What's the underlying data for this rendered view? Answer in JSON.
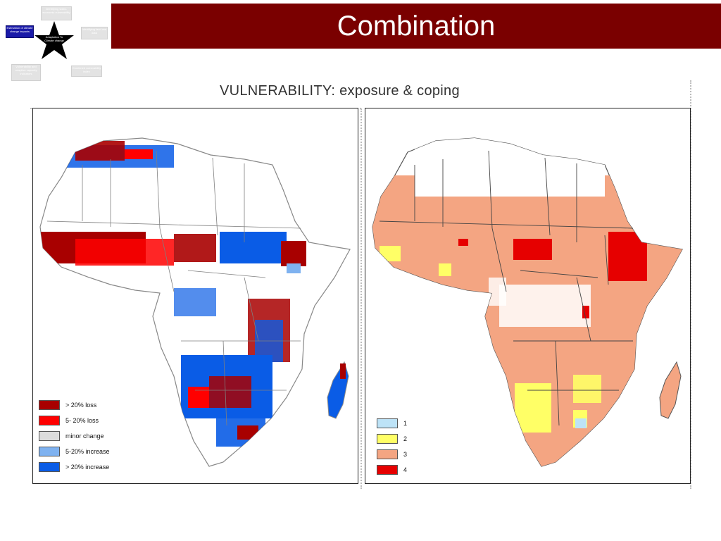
{
  "slide": {
    "title": "Combination"
  },
  "diagram": {
    "center_label": "Adaptation To Climate change",
    "boxes": [
      {
        "label": "Estimation of climate change impacts",
        "active": true
      },
      {
        "label": "Identifying socio-economic vulnerability",
        "active": false
      },
      {
        "label": "Identifying land use data",
        "active": false
      },
      {
        "label": "Vulnerability and adaptive capacity indicators",
        "active": false
      },
      {
        "label": "Combined vulnerability index",
        "active": false
      }
    ]
  },
  "figure": {
    "title": "VULNERABILITY: exposure & coping",
    "left_legend": [
      {
        "label": "> 20% loss",
        "color": "#a80000"
      },
      {
        "label": "5- 20% loss",
        "color": "#ff0000"
      },
      {
        "label": "minor change",
        "color": "#dcdcdc"
      },
      {
        "label": "5-20% increase",
        "color": "#7fb2f0"
      },
      {
        "label": "> 20% increase",
        "color": "#0a5ce6"
      }
    ],
    "right_legend": [
      {
        "label": "1",
        "color": "#bde3f7"
      },
      {
        "label": "2",
        "color": "#ffff66"
      },
      {
        "label": "3",
        "color": "#f4a582"
      },
      {
        "label": "4",
        "color": "#e60000"
      }
    ]
  }
}
